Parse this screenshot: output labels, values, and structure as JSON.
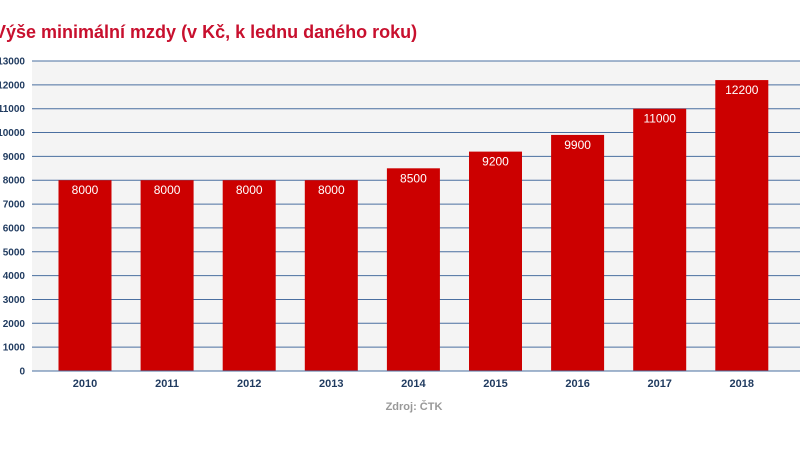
{
  "chart_data": {
    "type": "bar",
    "title": "Výše minimální mzdy (v Kč, k lednu daného roku)",
    "categories": [
      "2010",
      "2011",
      "2012",
      "2013",
      "2014",
      "2015",
      "2016",
      "2017",
      "2018"
    ],
    "values": [
      8000,
      8000,
      8000,
      8000,
      8500,
      9200,
      9900,
      11000,
      12200
    ],
    "data_labels": [
      "8000",
      "8000",
      "8000",
      "8000",
      "8500",
      "9200",
      "9900",
      "11000",
      "12200"
    ],
    "y_ticks": [
      "0",
      "1000",
      "2000",
      "3000",
      "4000",
      "5000",
      "6000",
      "7000",
      "8000",
      "9000",
      "10000",
      "11000",
      "12000",
      "13000"
    ],
    "ylim": [
      0,
      13000
    ],
    "xlabel": "",
    "ylabel": "",
    "grid": true,
    "legend": "none",
    "source": "Zdroj: ČTK",
    "colors": {
      "bar": "#cc0000",
      "title": "#c8102e",
      "grid": "#4a6fa0",
      "axis_text": "#1f3a5f",
      "plot_bg": "#f4f4f4",
      "source": "#999999"
    }
  }
}
